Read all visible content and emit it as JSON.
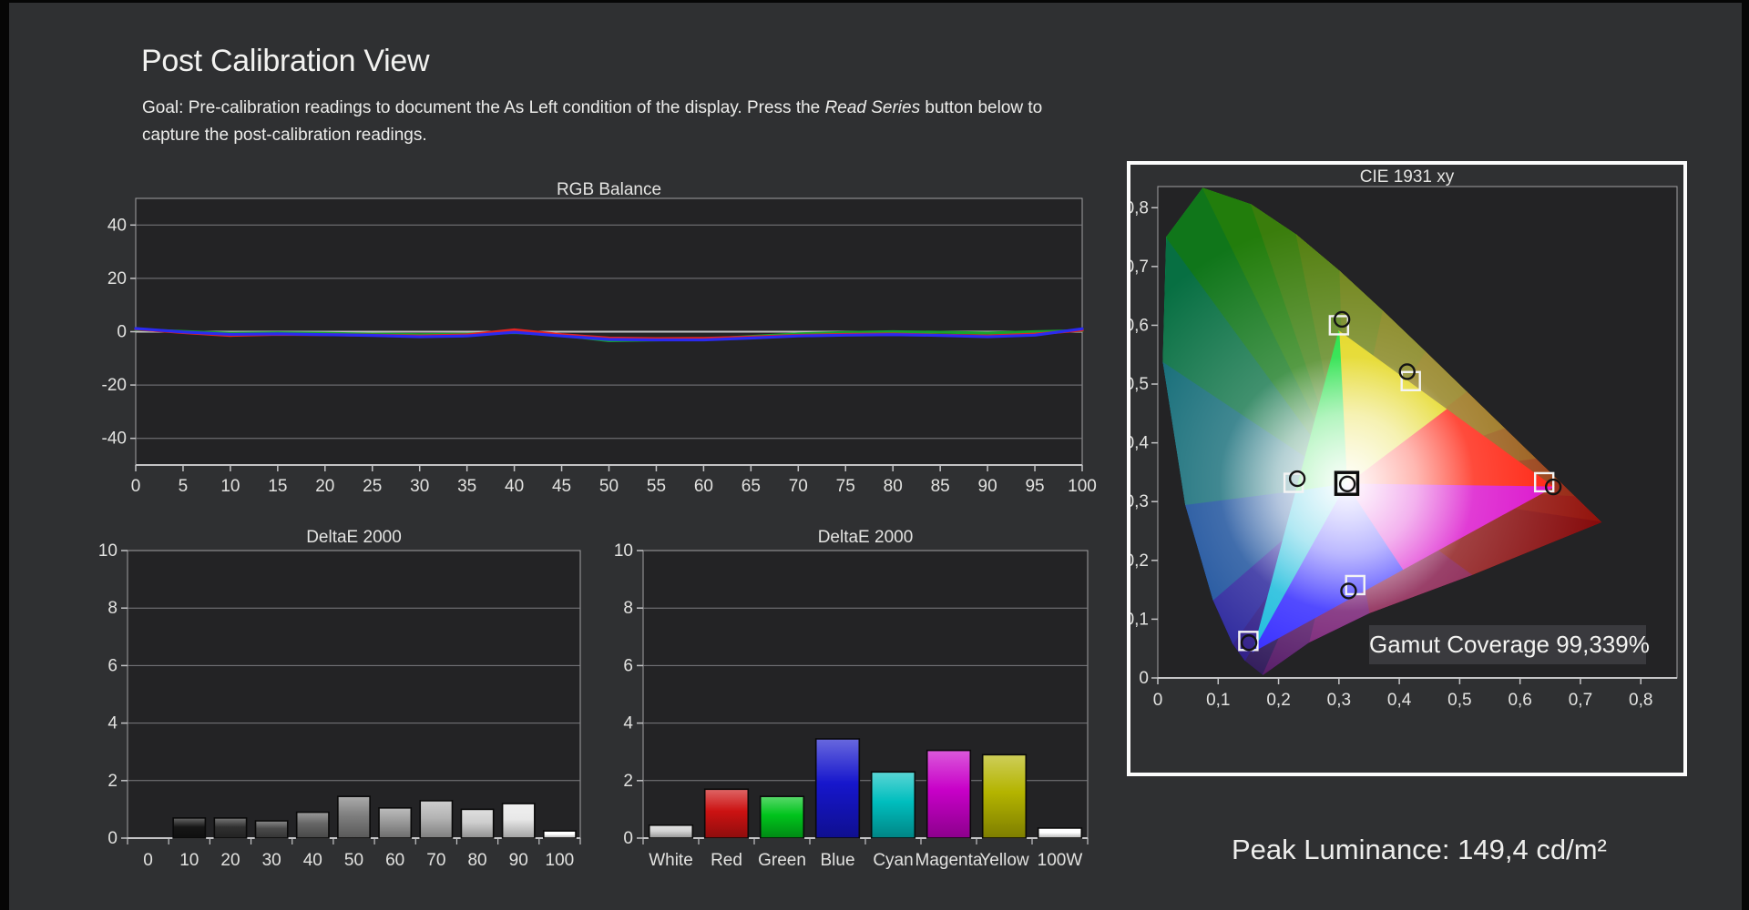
{
  "page": {
    "background": "#2f3032",
    "accent_text": "#eceeea"
  },
  "header": {
    "title": "Post Calibration View",
    "goal_prefix": "Goal: Pre-calibration readings to document the As Left condition of the display. Press the ",
    "goal_italic": "Read Series",
    "goal_suffix": " button below to",
    "goal_line2": "capture the post-calibration readings."
  },
  "footer": {
    "peak_luminance": "Peak Luminance: 149,4 cd/m²"
  },
  "chart_data": [
    {
      "id": "rgb",
      "type": "line",
      "title": "RGB Balance",
      "xlabel": "",
      "ylabel": "",
      "ylim": [
        -50,
        50
      ],
      "grid": true,
      "x": [
        0,
        5,
        10,
        15,
        20,
        25,
        30,
        35,
        40,
        45,
        50,
        55,
        60,
        65,
        70,
        75,
        80,
        85,
        90,
        95,
        100
      ],
      "x_tick_labels": [
        "0",
        "5",
        "10",
        "15",
        "20",
        "25",
        "30",
        "35",
        "40",
        "45",
        "50",
        "55",
        "60",
        "65",
        "70",
        "75",
        "80",
        "85",
        "90",
        "95",
        "100"
      ],
      "y_ticks": [
        {
          "v": 40,
          "label": "40"
        },
        {
          "v": 20,
          "label": "20"
        },
        {
          "v": 0,
          "label": "0"
        },
        {
          "v": -20,
          "label": "-20"
        },
        {
          "v": -40,
          "label": "-40"
        }
      ],
      "series": [
        {
          "name": "Green",
          "color": "#16a32e",
          "values": [
            0.8,
            0.1,
            -0.6,
            -0.4,
            -0.6,
            -0.9,
            -1.1,
            -0.9,
            -0.3,
            -1.3,
            -3.4,
            -3.1,
            -2.8,
            -1.8,
            -0.8,
            -0.3,
            0.0,
            -0.2,
            -0.5,
            0.0,
            0.4
          ]
        },
        {
          "name": "Red",
          "color": "#e02424",
          "values": [
            1.0,
            -0.3,
            -1.4,
            -1.0,
            -1.1,
            -1.3,
            -1.6,
            -1.2,
            0.7,
            -1.1,
            -2.4,
            -2.6,
            -2.5,
            -2.0,
            -1.4,
            -1.0,
            -0.9,
            -1.3,
            -1.6,
            -0.9,
            0.6
          ]
        },
        {
          "name": "Blue",
          "color": "#2a2af0",
          "values": [
            1.2,
            -0.1,
            -1.0,
            -0.8,
            -1.1,
            -1.4,
            -1.9,
            -1.6,
            -0.2,
            -1.6,
            -2.9,
            -3.1,
            -3.1,
            -2.4,
            -1.6,
            -1.3,
            -1.1,
            -1.4,
            -1.9,
            -1.3,
            1.1
          ]
        }
      ]
    },
    {
      "id": "gray",
      "type": "bar",
      "title": "DeltaE 2000",
      "ylim": [
        0,
        10
      ],
      "y_ticks": [
        {
          "v": 10,
          "label": "10"
        },
        {
          "v": 8,
          "label": "8"
        },
        {
          "v": 6,
          "label": "6"
        },
        {
          "v": 4,
          "label": "4"
        },
        {
          "v": 2,
          "label": "2"
        },
        {
          "v": 0,
          "label": "0"
        }
      ],
      "categories": [
        "0",
        "10",
        "20",
        "30",
        "40",
        "50",
        "60",
        "70",
        "80",
        "90",
        "100"
      ],
      "values": [
        0,
        0.7,
        0.7,
        0.6,
        0.9,
        1.45,
        1.05,
        1.3,
        1.0,
        1.2,
        0.25
      ],
      "colors": [
        "#000000",
        "#161616",
        "#303030",
        "#4a4a4a",
        "#656565",
        "#7f7f7f",
        "#9a9a9a",
        "#b4b4b4",
        "#cecece",
        "#e8e8e8",
        "#ffffff"
      ]
    },
    {
      "id": "color",
      "type": "bar",
      "title": "DeltaE 2000",
      "ylim": [
        0,
        10
      ],
      "y_ticks": [
        {
          "v": 10,
          "label": "10"
        },
        {
          "v": 8,
          "label": "8"
        },
        {
          "v": 6,
          "label": "6"
        },
        {
          "v": 4,
          "label": "4"
        },
        {
          "v": 2,
          "label": "2"
        },
        {
          "v": 0,
          "label": "0"
        }
      ],
      "categories": [
        "White",
        "Red",
        "Green",
        "Blue",
        "Cyan",
        "Magenta",
        "Yellow",
        "100W"
      ],
      "values": [
        0.45,
        1.7,
        1.45,
        3.45,
        2.3,
        3.05,
        2.9,
        0.35
      ],
      "colors": [
        "#d4d4d4",
        "#cc1212",
        "#00c41c",
        "#1616cc",
        "#00bebe",
        "#c800c8",
        "#b4b400",
        "#ffffff"
      ]
    },
    {
      "id": "cie",
      "type": "scatter",
      "title": "CIE 1931 xy",
      "xlim": [
        0,
        0.86
      ],
      "ylim": [
        0,
        0.836
      ],
      "x_ticks": [
        {
          "v": 0,
          "label": "0"
        },
        {
          "v": 0.1,
          "label": "0,1"
        },
        {
          "v": 0.2,
          "label": "0,2"
        },
        {
          "v": 0.3,
          "label": "0,3"
        },
        {
          "v": 0.4,
          "label": "0,4"
        },
        {
          "v": 0.5,
          "label": "0,5"
        },
        {
          "v": 0.6,
          "label": "0,6"
        },
        {
          "v": 0.7,
          "label": "0,7"
        },
        {
          "v": 0.8,
          "label": "0,8"
        }
      ],
      "y_ticks": [
        {
          "v": 0,
          "label": "0"
        },
        {
          "v": 0.1,
          "label": "0,1"
        },
        {
          "v": 0.2,
          "label": "0,2"
        },
        {
          "v": 0.3,
          "label": "0,3"
        },
        {
          "v": 0.4,
          "label": "0,4"
        },
        {
          "v": 0.5,
          "label": "0,5"
        },
        {
          "v": 0.6,
          "label": "0,6"
        },
        {
          "v": 0.7,
          "label": "0,7"
        },
        {
          "v": 0.8,
          "label": "0,8"
        }
      ],
      "gamut_coverage_label": "Gamut Coverage 99,339%",
      "white_point": [
        0.313,
        0.33
      ],
      "gamut_triangle": {
        "red": [
          0.655,
          0.325
        ],
        "green": [
          0.3,
          0.59
        ],
        "blue": [
          0.158,
          0.045
        ]
      },
      "points": [
        {
          "name": "white",
          "target": [
            0.313,
            0.331
          ],
          "measured": [
            0.314,
            0.33
          ],
          "white_point": true
        },
        {
          "name": "red",
          "target": [
            0.64,
            0.333
          ],
          "measured": [
            0.655,
            0.325
          ]
        },
        {
          "name": "green",
          "target": [
            0.3,
            0.6
          ],
          "measured": [
            0.305,
            0.61
          ]
        },
        {
          "name": "blue",
          "target": [
            0.15,
            0.063
          ],
          "measured": [
            0.151,
            0.06
          ]
        },
        {
          "name": "cyan",
          "target": [
            0.225,
            0.332
          ],
          "measured": [
            0.231,
            0.339
          ]
        },
        {
          "name": "magenta",
          "target": [
            0.327,
            0.158
          ],
          "measured": [
            0.316,
            0.148
          ]
        },
        {
          "name": "yellow",
          "target": [
            0.419,
            0.505
          ],
          "measured": [
            0.413,
            0.521
          ]
        }
      ]
    }
  ]
}
